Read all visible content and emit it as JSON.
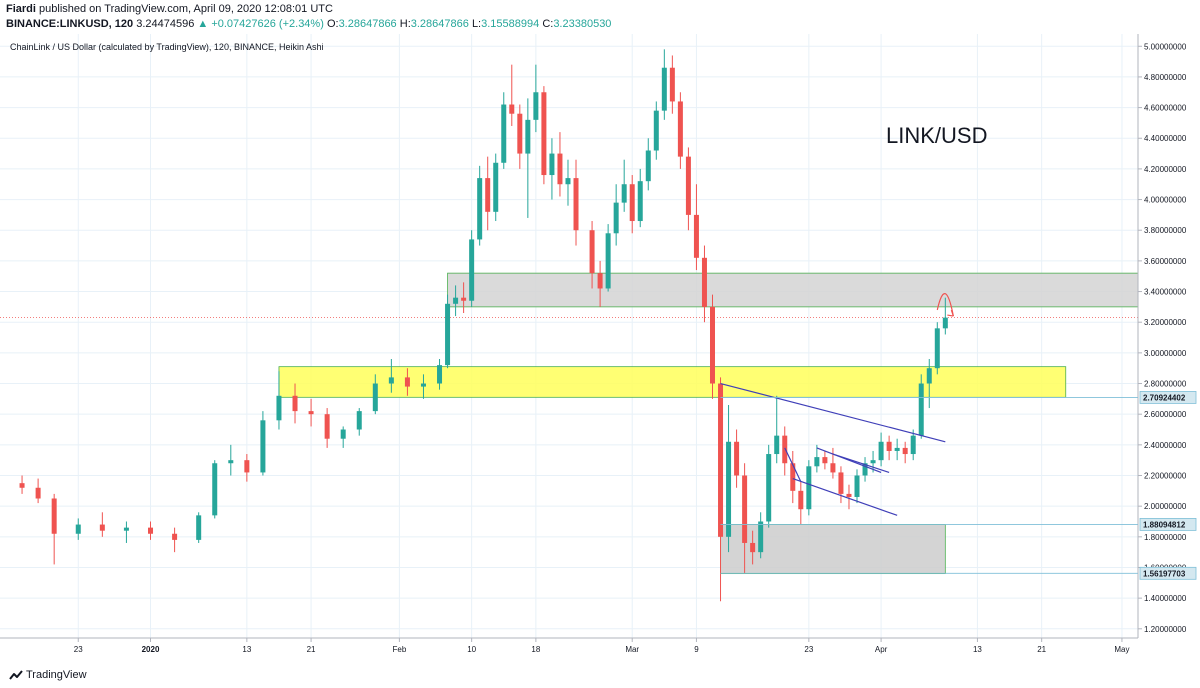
{
  "header": {
    "line1": {
      "author": "Fiardi",
      "text": "published on TradingView.com, April 09, 2020 12:08:01 UTC"
    },
    "line2": {
      "symbol": "BINANCE:LINKUSD, 120",
      "price": "3.24474596",
      "change": "▲ +0.07427626 (+2.34%)",
      "open_label": "O:",
      "open": "3.28647866",
      "high_label": "H:",
      "high": "3.28647866",
      "low_label": "L:",
      "low": "3.15588994",
      "close_label": "C:",
      "close": "3.23380530"
    }
  },
  "footer": {
    "brand": "TradingView",
    "logo_icon": "tradingview-logo-icon"
  },
  "chart_data": {
    "type": "candlestick",
    "title": "ChainLink / US Dollar (calculated by TradingView), 120, BINANCE, Heikin Ashi",
    "annotation": "LINK/USD",
    "y_axis": {
      "ticks": [
        "1.20000000",
        "1.40000000",
        "1.60000000",
        "1.80000000",
        "2.00000000",
        "2.20000000",
        "2.40000000",
        "2.60000000",
        "2.80000000",
        "3.00000000",
        "3.20000000",
        "3.40000000",
        "3.60000000",
        "3.80000000",
        "4.00000000",
        "4.20000000",
        "4.40000000",
        "4.60000000",
        "4.80000000",
        "5.00000000"
      ],
      "range": [
        1.14,
        5.08
      ]
    },
    "x_axis": {
      "ticks": [
        "23",
        "2020",
        "13",
        "21",
        "Feb",
        "10",
        "18",
        "Mar",
        "9",
        "23",
        "Apr",
        "13",
        "21",
        "May"
      ]
    },
    "price_labels": [
      {
        "text": "2.70924402",
        "value": 2.70924402
      },
      {
        "text": "1.88094812",
        "value": 1.88094812
      },
      {
        "text": "1.56197703",
        "value": 1.56197703
      }
    ],
    "current_price": 3.23,
    "zones": [
      {
        "name": "upper-resistance-zone",
        "low": 3.3,
        "high": 3.52,
        "color": "#d3d3d3"
      },
      {
        "name": "middle-support-zone",
        "low": 2.71,
        "high": 2.91,
        "color": "#ffff5a"
      },
      {
        "name": "lower-support-zone",
        "low": 1.56,
        "high": 1.88,
        "color": "#cccccc"
      }
    ],
    "colors": {
      "up": "#26a69a",
      "down": "#ef5350",
      "trendline": "#3f3fb8",
      "arrow": "#ef5350",
      "grid": "#e8f1f8"
    },
    "series": [
      {
        "date": "2019-12-16",
        "o": 2.15,
        "h": 2.2,
        "l": 2.08,
        "c": 2.12
      },
      {
        "date": "2019-12-18",
        "o": 2.12,
        "h": 2.18,
        "l": 2.02,
        "c": 2.05
      },
      {
        "date": "2019-12-20",
        "o": 2.05,
        "h": 2.08,
        "l": 1.62,
        "c": 1.82
      },
      {
        "date": "2019-12-23",
        "o": 1.82,
        "h": 1.92,
        "l": 1.78,
        "c": 1.88
      },
      {
        "date": "2019-12-26",
        "o": 1.88,
        "h": 1.96,
        "l": 1.8,
        "c": 1.84
      },
      {
        "date": "2019-12-29",
        "o": 1.84,
        "h": 1.9,
        "l": 1.76,
        "c": 1.86
      },
      {
        "date": "2020-01-01",
        "o": 1.86,
        "h": 1.9,
        "l": 1.78,
        "c": 1.82
      },
      {
        "date": "2020-01-04",
        "o": 1.82,
        "h": 1.86,
        "l": 1.7,
        "c": 1.78
      },
      {
        "date": "2020-01-07",
        "o": 1.78,
        "h": 1.96,
        "l": 1.76,
        "c": 1.94
      },
      {
        "date": "2020-01-09",
        "o": 1.94,
        "h": 2.3,
        "l": 1.92,
        "c": 2.28
      },
      {
        "date": "2020-01-11",
        "o": 2.28,
        "h": 2.4,
        "l": 2.2,
        "c": 2.3
      },
      {
        "date": "2020-01-13",
        "o": 2.3,
        "h": 2.34,
        "l": 2.16,
        "c": 2.22
      },
      {
        "date": "2020-01-15",
        "o": 2.22,
        "h": 2.62,
        "l": 2.2,
        "c": 2.56
      },
      {
        "date": "2020-01-17",
        "o": 2.56,
        "h": 2.88,
        "l": 2.5,
        "c": 2.72
      },
      {
        "date": "2020-01-19",
        "o": 2.72,
        "h": 2.8,
        "l": 2.54,
        "c": 2.62
      },
      {
        "date": "2020-01-21",
        "o": 2.62,
        "h": 2.7,
        "l": 2.52,
        "c": 2.6
      },
      {
        "date": "2020-01-23",
        "o": 2.6,
        "h": 2.64,
        "l": 2.38,
        "c": 2.44
      },
      {
        "date": "2020-01-25",
        "o": 2.44,
        "h": 2.52,
        "l": 2.38,
        "c": 2.5
      },
      {
        "date": "2020-01-27",
        "o": 2.5,
        "h": 2.64,
        "l": 2.46,
        "c": 2.62
      },
      {
        "date": "2020-01-29",
        "o": 2.62,
        "h": 2.86,
        "l": 2.6,
        "c": 2.8
      },
      {
        "date": "2020-01-31",
        "o": 2.8,
        "h": 2.96,
        "l": 2.74,
        "c": 2.84
      },
      {
        "date": "2020-02-02",
        "o": 2.84,
        "h": 2.9,
        "l": 2.72,
        "c": 2.78
      },
      {
        "date": "2020-02-04",
        "o": 2.78,
        "h": 2.86,
        "l": 2.7,
        "c": 2.8
      },
      {
        "date": "2020-02-06",
        "o": 2.8,
        "h": 2.96,
        "l": 2.76,
        "c": 2.92
      },
      {
        "date": "2020-02-07",
        "o": 2.92,
        "h": 3.38,
        "l": 2.9,
        "c": 3.32
      },
      {
        "date": "2020-02-08",
        "o": 3.32,
        "h": 3.44,
        "l": 3.24,
        "c": 3.36
      },
      {
        "date": "2020-02-09",
        "o": 3.36,
        "h": 3.46,
        "l": 3.26,
        "c": 3.34
      },
      {
        "date": "2020-02-10",
        "o": 3.34,
        "h": 3.8,
        "l": 3.3,
        "c": 3.74
      },
      {
        "date": "2020-02-11",
        "o": 3.74,
        "h": 4.22,
        "l": 3.7,
        "c": 4.14
      },
      {
        "date": "2020-02-12",
        "o": 4.14,
        "h": 4.28,
        "l": 3.8,
        "c": 3.92
      },
      {
        "date": "2020-02-13",
        "o": 3.92,
        "h": 4.3,
        "l": 3.86,
        "c": 4.24
      },
      {
        "date": "2020-02-14",
        "o": 4.24,
        "h": 4.7,
        "l": 4.2,
        "c": 4.62
      },
      {
        "date": "2020-02-15",
        "o": 4.62,
        "h": 4.88,
        "l": 4.48,
        "c": 4.56
      },
      {
        "date": "2020-02-16",
        "o": 4.56,
        "h": 4.62,
        "l": 4.2,
        "c": 4.3
      },
      {
        "date": "2020-02-17",
        "o": 4.3,
        "h": 4.66,
        "l": 3.88,
        "c": 4.52
      },
      {
        "date": "2020-02-18",
        "o": 4.52,
        "h": 4.88,
        "l": 4.44,
        "c": 4.7
      },
      {
        "date": "2020-02-19",
        "o": 4.7,
        "h": 4.74,
        "l": 4.1,
        "c": 4.16
      },
      {
        "date": "2020-02-20",
        "o": 4.16,
        "h": 4.4,
        "l": 4.0,
        "c": 4.3
      },
      {
        "date": "2020-02-21",
        "o": 4.3,
        "h": 4.44,
        "l": 4.02,
        "c": 4.1
      },
      {
        "date": "2020-02-22",
        "o": 4.1,
        "h": 4.26,
        "l": 3.96,
        "c": 4.14
      },
      {
        "date": "2020-02-23",
        "o": 4.14,
        "h": 4.26,
        "l": 3.7,
        "c": 3.8
      },
      {
        "date": "2020-02-25",
        "o": 3.8,
        "h": 3.86,
        "l": 3.42,
        "c": 3.52
      },
      {
        "date": "2020-02-26",
        "o": 3.52,
        "h": 3.6,
        "l": 3.3,
        "c": 3.42
      },
      {
        "date": "2020-02-27",
        "o": 3.42,
        "h": 3.84,
        "l": 3.4,
        "c": 3.78
      },
      {
        "date": "2020-02-28",
        "o": 3.78,
        "h": 4.1,
        "l": 3.7,
        "c": 3.98
      },
      {
        "date": "2020-02-29",
        "o": 3.98,
        "h": 4.26,
        "l": 3.92,
        "c": 4.1
      },
      {
        "date": "2020-03-01",
        "o": 4.1,
        "h": 4.16,
        "l": 3.78,
        "c": 3.86
      },
      {
        "date": "2020-03-02",
        "o": 3.86,
        "h": 4.2,
        "l": 3.82,
        "c": 4.12
      },
      {
        "date": "2020-03-03",
        "o": 4.12,
        "h": 4.4,
        "l": 4.06,
        "c": 4.32
      },
      {
        "date": "2020-03-04",
        "o": 4.32,
        "h": 4.64,
        "l": 4.26,
        "c": 4.58
      },
      {
        "date": "2020-03-05",
        "o": 4.58,
        "h": 4.98,
        "l": 4.52,
        "c": 4.86
      },
      {
        "date": "2020-03-06",
        "o": 4.86,
        "h": 4.94,
        "l": 4.56,
        "c": 4.64
      },
      {
        "date": "2020-03-07",
        "o": 4.64,
        "h": 4.7,
        "l": 4.2,
        "c": 4.28
      },
      {
        "date": "2020-03-08",
        "o": 4.28,
        "h": 4.34,
        "l": 3.8,
        "c": 3.9
      },
      {
        "date": "2020-03-09",
        "o": 3.9,
        "h": 4.1,
        "l": 3.54,
        "c": 3.62
      },
      {
        "date": "2020-03-10",
        "o": 3.62,
        "h": 3.7,
        "l": 3.2,
        "c": 3.3
      },
      {
        "date": "2020-03-11",
        "o": 3.3,
        "h": 3.38,
        "l": 2.7,
        "c": 2.8
      },
      {
        "date": "2020-03-12",
        "o": 2.8,
        "h": 2.84,
        "l": 1.38,
        "c": 1.8
      },
      {
        "date": "2020-03-13",
        "o": 1.8,
        "h": 2.66,
        "l": 1.7,
        "c": 2.42
      },
      {
        "date": "2020-03-14",
        "o": 2.42,
        "h": 2.5,
        "l": 2.12,
        "c": 2.2
      },
      {
        "date": "2020-03-15",
        "o": 2.2,
        "h": 2.28,
        "l": 1.56,
        "c": 1.76
      },
      {
        "date": "2020-03-16",
        "o": 1.76,
        "h": 1.84,
        "l": 1.62,
        "c": 1.7
      },
      {
        "date": "2020-03-17",
        "o": 1.7,
        "h": 1.96,
        "l": 1.66,
        "c": 1.9
      },
      {
        "date": "2020-03-18",
        "o": 1.9,
        "h": 2.4,
        "l": 1.86,
        "c": 2.34
      },
      {
        "date": "2020-03-19",
        "o": 2.34,
        "h": 2.72,
        "l": 2.28,
        "c": 2.46
      },
      {
        "date": "2020-03-20",
        "o": 2.46,
        "h": 2.52,
        "l": 2.2,
        "c": 2.28
      },
      {
        "date": "2020-03-21",
        "o": 2.28,
        "h": 2.36,
        "l": 2.02,
        "c": 2.1
      },
      {
        "date": "2020-03-22",
        "o": 2.1,
        "h": 2.16,
        "l": 1.88,
        "c": 1.98
      },
      {
        "date": "2020-03-23",
        "o": 1.98,
        "h": 2.3,
        "l": 1.94,
        "c": 2.26
      },
      {
        "date": "2020-03-24",
        "o": 2.26,
        "h": 2.4,
        "l": 2.22,
        "c": 2.32
      },
      {
        "date": "2020-03-25",
        "o": 2.32,
        "h": 2.36,
        "l": 2.24,
        "c": 2.28
      },
      {
        "date": "2020-03-26",
        "o": 2.28,
        "h": 2.38,
        "l": 2.18,
        "c": 2.22
      },
      {
        "date": "2020-03-27",
        "o": 2.22,
        "h": 2.26,
        "l": 2.02,
        "c": 2.08
      },
      {
        "date": "2020-03-28",
        "o": 2.08,
        "h": 2.14,
        "l": 1.98,
        "c": 2.06
      },
      {
        "date": "2020-03-29",
        "o": 2.06,
        "h": 2.24,
        "l": 2.02,
        "c": 2.2
      },
      {
        "date": "2020-03-30",
        "o": 2.2,
        "h": 2.32,
        "l": 2.16,
        "c": 2.28
      },
      {
        "date": "2020-03-31",
        "o": 2.28,
        "h": 2.36,
        "l": 2.22,
        "c": 2.3
      },
      {
        "date": "2020-04-01",
        "o": 2.3,
        "h": 2.48,
        "l": 2.26,
        "c": 2.42
      },
      {
        "date": "2020-04-02",
        "o": 2.42,
        "h": 2.46,
        "l": 2.3,
        "c": 2.36
      },
      {
        "date": "2020-04-03",
        "o": 2.36,
        "h": 2.44,
        "l": 2.3,
        "c": 2.38
      },
      {
        "date": "2020-04-04",
        "o": 2.38,
        "h": 2.42,
        "l": 2.28,
        "c": 2.34
      },
      {
        "date": "2020-04-05",
        "o": 2.34,
        "h": 2.5,
        "l": 2.3,
        "c": 2.46
      },
      {
        "date": "2020-04-06",
        "o": 2.46,
        "h": 2.86,
        "l": 2.44,
        "c": 2.8
      },
      {
        "date": "2020-04-07",
        "o": 2.8,
        "h": 2.96,
        "l": 2.64,
        "c": 2.9
      },
      {
        "date": "2020-04-08",
        "o": 2.9,
        "h": 3.2,
        "l": 2.86,
        "c": 3.16
      },
      {
        "date": "2020-04-09",
        "o": 3.16,
        "h": 3.36,
        "l": 3.12,
        "c": 3.23
      }
    ]
  }
}
